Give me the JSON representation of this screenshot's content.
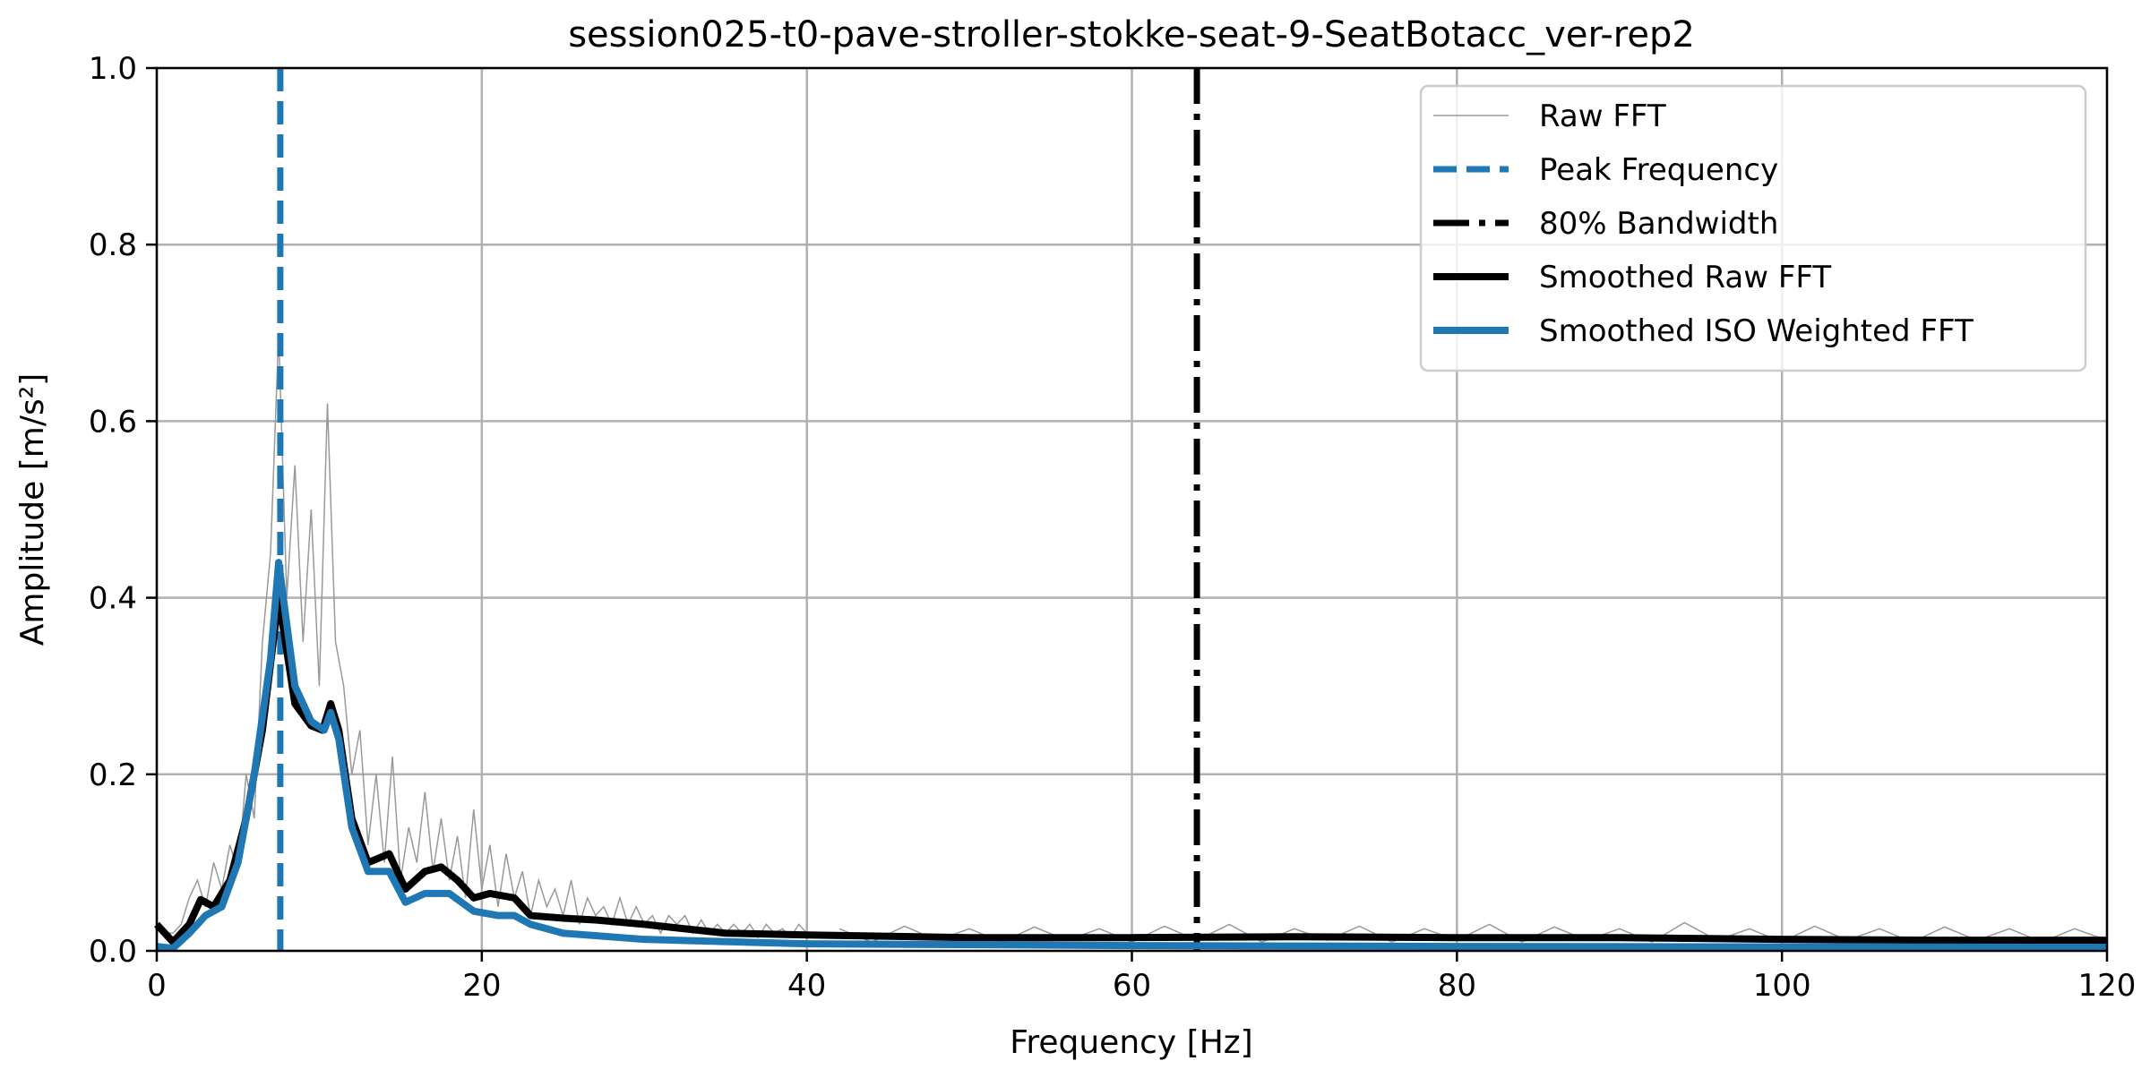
{
  "chart_data": {
    "type": "line",
    "title": "session025-t0-pave-stroller-stokke-seat-9-SeatBotacc_ver-rep2",
    "xlabel": "Frequency [Hz]",
    "ylabel": "Amplitude [m/s²]",
    "xlim": [
      0,
      120
    ],
    "ylim": [
      0,
      1.0
    ],
    "grid": true,
    "x_ticks": [
      0,
      20,
      40,
      60,
      80,
      100,
      120
    ],
    "x_tick_labels": [
      "0",
      "20",
      "40",
      "60",
      "80",
      "100",
      "120"
    ],
    "y_ticks": [
      0,
      0.2,
      0.4,
      0.6,
      0.8,
      1.0
    ],
    "y_tick_labels": [
      "0.0",
      "0.2",
      "0.4",
      "0.6",
      "0.8",
      "1.0"
    ],
    "legend_position": "top-right",
    "legend": [
      "Raw FFT",
      "Peak Frequency",
      "80% Bandwidth",
      "Smoothed Raw FFT",
      "Smoothed ISO Weighted FFT"
    ],
    "colors": {
      "raw": "#999999",
      "peak": "#1f77b4",
      "bandwidth": "#000000",
      "smoothed_raw": "#000000",
      "smoothed_iso": "#1f77b4"
    },
    "peak_frequency": 7.6,
    "bandwidth_80pct": 64.0,
    "raw_fft_segments": [
      {
        "x0": 0,
        "dx": 0.5,
        "y": [
          0.03,
          0.02,
          0.02,
          0.03,
          0.06,
          0.08,
          0.05,
          0.1,
          0.07,
          0.12,
          0.09,
          0.2,
          0.15,
          0.35,
          0.45,
          0.7,
          0.4,
          0.55,
          0.35,
          0.5,
          0.3,
          0.62,
          0.35,
          0.3,
          0.2,
          0.25,
          0.12,
          0.2,
          0.1,
          0.22,
          0.08,
          0.14,
          0.1,
          0.18,
          0.09,
          0.15,
          0.08,
          0.13,
          0.06,
          0.16,
          0.07,
          0.12,
          0.05,
          0.11,
          0.06,
          0.09,
          0.04,
          0.08,
          0.05,
          0.07,
          0.04,
          0.08,
          0.03,
          0.06,
          0.04,
          0.05,
          0.03,
          0.06,
          0.03,
          0.05,
          0.03,
          0.04,
          0.02,
          0.04,
          0.03,
          0.04,
          0.02,
          0.035,
          0.02,
          0.03,
          0.02,
          0.03,
          0.02,
          0.03,
          0.015,
          0.03,
          0.02,
          0.025,
          0.015,
          0.03,
          0.02
        ]
      },
      {
        "x0": 42,
        "dx": 2,
        "y": [
          0.025,
          0.01,
          0.028,
          0.012,
          0.025,
          0.01,
          0.027,
          0.012,
          0.025,
          0.01,
          0.028,
          0.012,
          0.03,
          0.01,
          0.025,
          0.012,
          0.028,
          0.01,
          0.025,
          0.012,
          0.03,
          0.01,
          0.027,
          0.012,
          0.025,
          0.01,
          0.032,
          0.012,
          0.025,
          0.01,
          0.028,
          0.012,
          0.025,
          0.01,
          0.027,
          0.012,
          0.025,
          0.01,
          0.025,
          0.012
        ]
      }
    ],
    "series": [
      {
        "name": "Smoothed Raw FFT",
        "x": [
          0,
          1,
          2,
          2.7,
          3.5,
          4.5,
          5.5,
          6.5,
          7.5,
          8.5,
          9.5,
          10.2,
          10.7,
          11.2,
          12,
          13,
          14.3,
          15.3,
          16.5,
          17.5,
          18.5,
          19.5,
          20.5,
          22,
          23,
          25,
          27,
          30,
          35,
          40,
          50,
          60,
          70,
          80,
          90,
          100,
          110,
          120
        ],
        "y": [
          0.03,
          0.01,
          0.03,
          0.058,
          0.05,
          0.08,
          0.15,
          0.25,
          0.4,
          0.28,
          0.255,
          0.25,
          0.28,
          0.25,
          0.15,
          0.1,
          0.11,
          0.07,
          0.09,
          0.095,
          0.08,
          0.06,
          0.065,
          0.06,
          0.04,
          0.037,
          0.035,
          0.03,
          0.02,
          0.018,
          0.015,
          0.015,
          0.016,
          0.015,
          0.015,
          0.013,
          0.012,
          0.012
        ]
      },
      {
        "name": "Smoothed ISO Weighted FFT",
        "x": [
          0,
          1,
          2,
          3,
          4,
          5,
          6,
          7,
          7.5,
          8.5,
          9.5,
          10.3,
          10.7,
          11.2,
          12,
          13,
          14.3,
          15.3,
          16.5,
          18,
          19.5,
          21,
          22,
          23,
          25,
          30,
          40,
          60,
          80,
          120
        ],
        "y": [
          0.005,
          0.003,
          0.02,
          0.04,
          0.05,
          0.1,
          0.2,
          0.33,
          0.44,
          0.3,
          0.26,
          0.25,
          0.27,
          0.24,
          0.14,
          0.09,
          0.09,
          0.055,
          0.065,
          0.065,
          0.045,
          0.04,
          0.04,
          0.03,
          0.02,
          0.013,
          0.008,
          0.006,
          0.005,
          0.004
        ]
      }
    ]
  }
}
